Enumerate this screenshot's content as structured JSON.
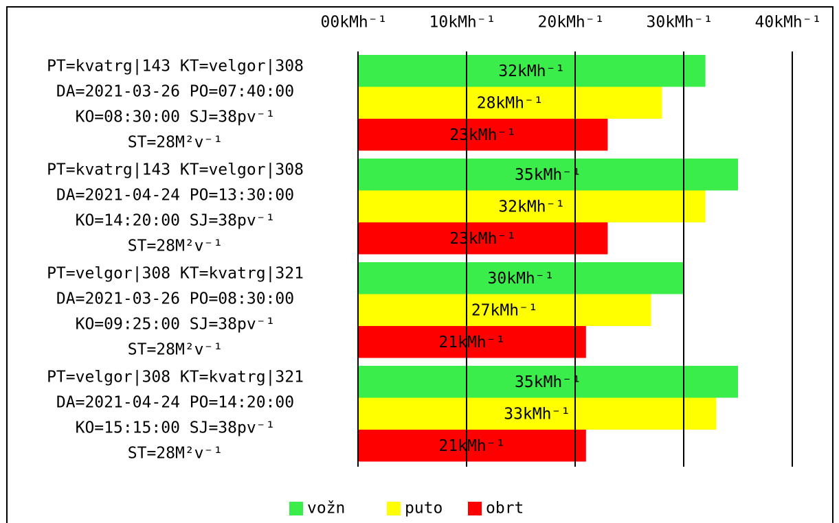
{
  "chart_data": {
    "type": "barh",
    "categories": [
      [
        "PT=kvatrg|143 KT=velgor|308",
        "DA=2021-03-26 PO=07:40:00",
        "KO=08:30:00 SJ=38pv⁻¹",
        "ST=28M²v⁻¹"
      ],
      [
        "PT=kvatrg|143 KT=velgor|308",
        "DA=2021-04-24 PO=13:30:00",
        "KO=14:20:00 SJ=38pv⁻¹",
        "ST=28M²v⁻¹"
      ],
      [
        "PT=velgor|308 KT=kvatrg|321",
        "DA=2021-03-26 PO=08:30:00",
        "KO=09:25:00 SJ=38pv⁻¹",
        "ST=28M²v⁻¹"
      ],
      [
        "PT=velgor|308 KT=kvatrg|321",
        "DA=2021-04-24 PO=14:20:00",
        "KO=15:15:00 SJ=38pv⁻¹",
        "ST=28M²v⁻¹"
      ]
    ],
    "series": [
      {
        "name": "vožn",
        "color": "#3aed4a",
        "values": [
          32,
          35,
          30,
          35
        ],
        "value_labels": [
          "32kMh⁻¹",
          "35kMh⁻¹",
          "30kMh⁻¹",
          "35kMh⁻¹"
        ]
      },
      {
        "name": "puto",
        "color": "#ffff00",
        "values": [
          28,
          32,
          27,
          33
        ],
        "value_labels": [
          "28kMh⁻¹",
          "32kMh⁻¹",
          "27kMh⁻¹",
          "33kMh⁻¹"
        ]
      },
      {
        "name": "obrt",
        "color": "#ff0000",
        "values": [
          23,
          23,
          21,
          21
        ],
        "value_labels": [
          "23kMh⁻¹",
          "23kMh⁻¹",
          "21kMh⁻¹",
          "21kMh⁻¹"
        ]
      }
    ],
    "xlim": [
      0,
      40
    ],
    "xticks": [
      {
        "value": 0,
        "label": "00kMh⁻¹"
      },
      {
        "value": 10,
        "label": "10kMh⁻¹"
      },
      {
        "value": 20,
        "label": "20kMh⁻¹"
      },
      {
        "value": 30,
        "label": "30kMh⁻¹"
      },
      {
        "value": 40,
        "label": "40kMh⁻¹"
      }
    ],
    "grid": true,
    "legend": "bottom"
  }
}
